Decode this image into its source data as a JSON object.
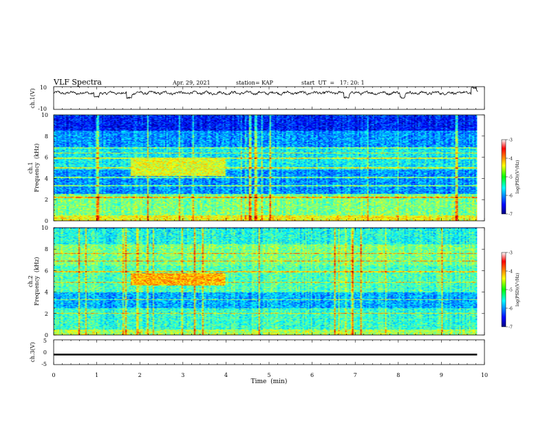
{
  "header": {
    "title": "VLF Spectra",
    "date": "Apr. 29, 2021",
    "station": "station= KAP",
    "start": "start  UT  =   17: 20: 1"
  },
  "chart_data": [
    {
      "type": "line",
      "name": "ch1-waveform",
      "ylabel": "ch.1(V)",
      "ylim": [
        -10,
        10
      ],
      "yticks": [
        "10",
        "-10"
      ],
      "xlim": [
        0,
        10
      ],
      "trace_mean": 4.5,
      "trace_amplitude": 3,
      "dips": [
        {
          "t": 1.0,
          "level": 1
        },
        {
          "t": 1.75,
          "level": 0
        },
        {
          "t": 6.8,
          "level": 0.5
        },
        {
          "t": 8.1,
          "level": 0.5
        },
        {
          "t": 9.75,
          "level": 9
        }
      ]
    },
    {
      "type": "heatmap",
      "name": "ch1-spectrogram",
      "ylabel": "ch.1",
      "ylabel2": "Frequency  (kHz)",
      "ylim": [
        0,
        10
      ],
      "yticks": [
        "0",
        "2",
        "4",
        "6",
        "8",
        "10"
      ],
      "xlim": [
        0,
        10
      ],
      "data_end_min": 9.83,
      "colorbar": {
        "label": "log(PSD)(V²/Hz)",
        "range": [
          -7,
          -3
        ],
        "ticks": [
          "-3",
          "-4",
          "-5",
          "-6",
          "-7"
        ]
      },
      "approx_log_psd_bands": [
        {
          "f": [
            0,
            0.5
          ],
          "v": -4.5
        },
        {
          "f": [
            0.5,
            2.5
          ],
          "v": -5.0
        },
        {
          "f": [
            2.5,
            4.8
          ],
          "v": -5.9
        },
        {
          "f": [
            4.8,
            6.8
          ],
          "v": -5.5
        },
        {
          "f": [
            6.8,
            8.5
          ],
          "v": -5.9
        },
        {
          "f": [
            8.5,
            10
          ],
          "v": -6.4
        }
      ],
      "enhanced_segment": {
        "t": [
          1.78,
          3.98
        ],
        "f": [
          4.2,
          6.0
        ],
        "v": -4.6
      },
      "horizontal_lines_khz": [
        2.2,
        3.3,
        4.1,
        5.0,
        5.9,
        6.4,
        6.9
      ]
    },
    {
      "type": "heatmap",
      "name": "ch2-spectrogram",
      "ylabel": "ch.2",
      "ylabel2": "Frequency  (kHz)",
      "ylim": [
        0,
        10
      ],
      "yticks": [
        "0",
        "2",
        "4",
        "6",
        "8",
        "10"
      ],
      "xlim": [
        0,
        10
      ],
      "data_end_min": 9.83,
      "colorbar": {
        "label": "log(PSD)(V²/Hz)",
        "range": [
          -7,
          -3
        ],
        "ticks": [
          "-3",
          "-4",
          "-5",
          "-6",
          "-7"
        ]
      },
      "approx_log_psd_bands": [
        {
          "f": [
            0,
            0.5
          ],
          "v": -4.8
        },
        {
          "f": [
            0.5,
            2.5
          ],
          "v": -5.3
        },
        {
          "f": [
            2.5,
            4.0
          ],
          "v": -5.8
        },
        {
          "f": [
            4.0,
            6.5
          ],
          "v": -5.2
        },
        {
          "f": [
            6.5,
            8.5
          ],
          "v": -5.0
        },
        {
          "f": [
            8.5,
            10
          ],
          "v": -5.4
        }
      ],
      "enhanced_segment": {
        "t": [
          1.78,
          3.98
        ],
        "f": [
          4.6,
          5.8
        ],
        "v": -4.2
      },
      "horizontal_lines_khz": [
        2.0,
        3.3,
        4.9,
        5.9,
        6.9,
        7.6
      ]
    },
    {
      "type": "line",
      "name": "ch3-waveform",
      "ylabel": "ch.3(V)",
      "ylim": [
        -5,
        5
      ],
      "yticks": [
        "5",
        "0",
        "-5"
      ],
      "xlim": [
        0,
        10
      ],
      "band": [
        -1.3,
        -0.6
      ],
      "xlabel": "Time  (min)",
      "xticks": [
        "0",
        "1",
        "2",
        "3",
        "4",
        "5",
        "6",
        "7",
        "8",
        "9",
        "10"
      ]
    }
  ]
}
